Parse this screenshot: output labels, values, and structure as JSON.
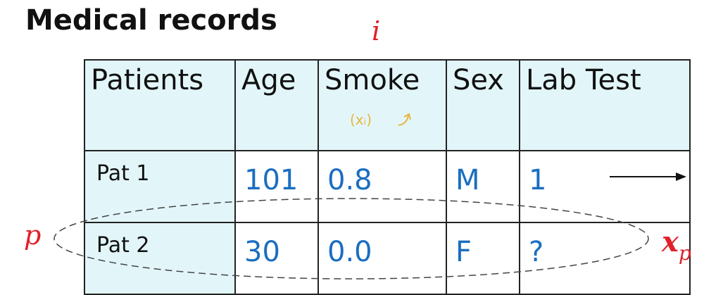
{
  "title": "Medical records",
  "labels": {
    "i": "i",
    "p": "p",
    "x": "x",
    "x_sub": "p"
  },
  "table": {
    "headers": [
      "Patients",
      "Age",
      "Smoke",
      "Sex",
      "Lab Test"
    ],
    "rows": [
      {
        "patient": "Pat 1",
        "age": "101",
        "smoke": "0.8",
        "sex": "M",
        "lab": "1"
      },
      {
        "patient": "Pat 2",
        "age": "30",
        "smoke": "0.0",
        "sex": "F",
        "lab": "?"
      }
    ]
  },
  "annotation": "(xᵢ)",
  "colors": {
    "header_bg": "#e2f6f9",
    "value_text": "#1a6ec0",
    "red_label": "#e0202a",
    "annotation": "#e9b53d"
  }
}
